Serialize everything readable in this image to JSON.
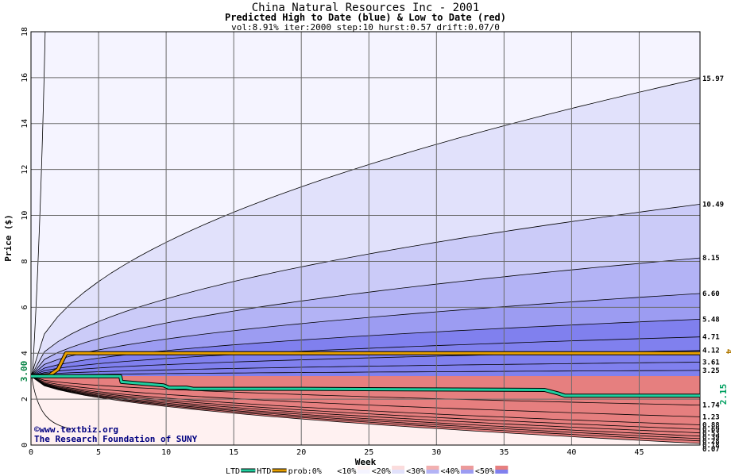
{
  "chart_data": {
    "type": "area",
    "title": "China Natural Resources Inc - 2001",
    "subtitle": "Predicted High to Date (blue) &  Low to Date (red)",
    "params": "vol:8.91% iter:2000 step:10 hurst:0.57 drift:0.07/0",
    "xlabel": "Week",
    "ylabel": "Price ($)",
    "xlim": [
      0,
      49.5
    ],
    "ylim": [
      0,
      18
    ],
    "xticks": [
      0,
      5,
      10,
      15,
      20,
      25,
      30,
      35,
      40,
      45
    ],
    "yticks": [
      0,
      2,
      4,
      6,
      8,
      10,
      12,
      14,
      16,
      18
    ],
    "grid": true,
    "start_price": 3.0,
    "start_price_label": "3.00",
    "high_percentile_curves": [
      {
        "label": "15.97",
        "end": 15.97
      },
      {
        "label": "10.49",
        "end": 10.49
      },
      {
        "label": "8.15",
        "end": 8.15
      },
      {
        "label": "6.60",
        "end": 6.6
      },
      {
        "label": "5.48",
        "end": 5.48
      },
      {
        "label": "4.71",
        "end": 4.71
      },
      {
        "label": "4.12",
        "end": 4.12
      },
      {
        "label": "3.61",
        "end": 3.61
      },
      {
        "label": "3.25",
        "end": 3.25
      }
    ],
    "low_percentile_curves": [
      {
        "label": "1.74",
        "end": 1.74
      },
      {
        "label": "1.23",
        "end": 1.23
      },
      {
        "label": "0.88",
        "end": 0.88
      },
      {
        "label": "0.69",
        "end": 0.69
      },
      {
        "label": "0.53",
        "end": 0.53
      },
      {
        "label": "0.39",
        "end": 0.39
      },
      {
        "label": "0.28",
        "end": 0.28
      },
      {
        "label": "0.18",
        "end": 0.18
      },
      {
        "label": "0.07",
        "end": 0.07
      }
    ],
    "series": [
      {
        "name": "HTD",
        "color": "#e8a000",
        "points": [
          [
            0,
            3.0
          ],
          [
            1.4,
            3.05
          ],
          [
            2,
            3.3
          ],
          [
            2.6,
            4.0
          ],
          [
            49.5,
            4.0
          ]
        ],
        "end_label": "4"
      },
      {
        "name": "LTD",
        "color": "#20d0a0",
        "points": [
          [
            0,
            3.0
          ],
          [
            6.6,
            3.0
          ],
          [
            6.7,
            2.75
          ],
          [
            9.8,
            2.6
          ],
          [
            10.2,
            2.5
          ],
          [
            11.5,
            2.5
          ],
          [
            12,
            2.45
          ],
          [
            20,
            2.45
          ],
          [
            38,
            2.4
          ],
          [
            39,
            2.25
          ],
          [
            39.5,
            2.15
          ],
          [
            49.5,
            2.15
          ]
        ],
        "end_label": "2.15"
      }
    ],
    "legend": {
      "position": "bottom",
      "items": [
        "LTD",
        "HTD",
        "prob:0%",
        "<10%",
        "<20%",
        "<30%",
        "<40%",
        "<50%"
      ]
    },
    "band_colors": [
      "#f5f4ff",
      "#e1e1fb",
      "#cbcbf8",
      "#b3b3f5",
      "#9c9cf2",
      "#8080ee"
    ],
    "low_band_colors": [
      "#fff1f1",
      "#fbdcdc",
      "#f7c7c7",
      "#f2b0b0",
      "#ec9a9a",
      "#e67f7f"
    ]
  },
  "credits": {
    "site": "©www.textbiz.org",
    "org": "The Research Foundation of SUNY"
  }
}
